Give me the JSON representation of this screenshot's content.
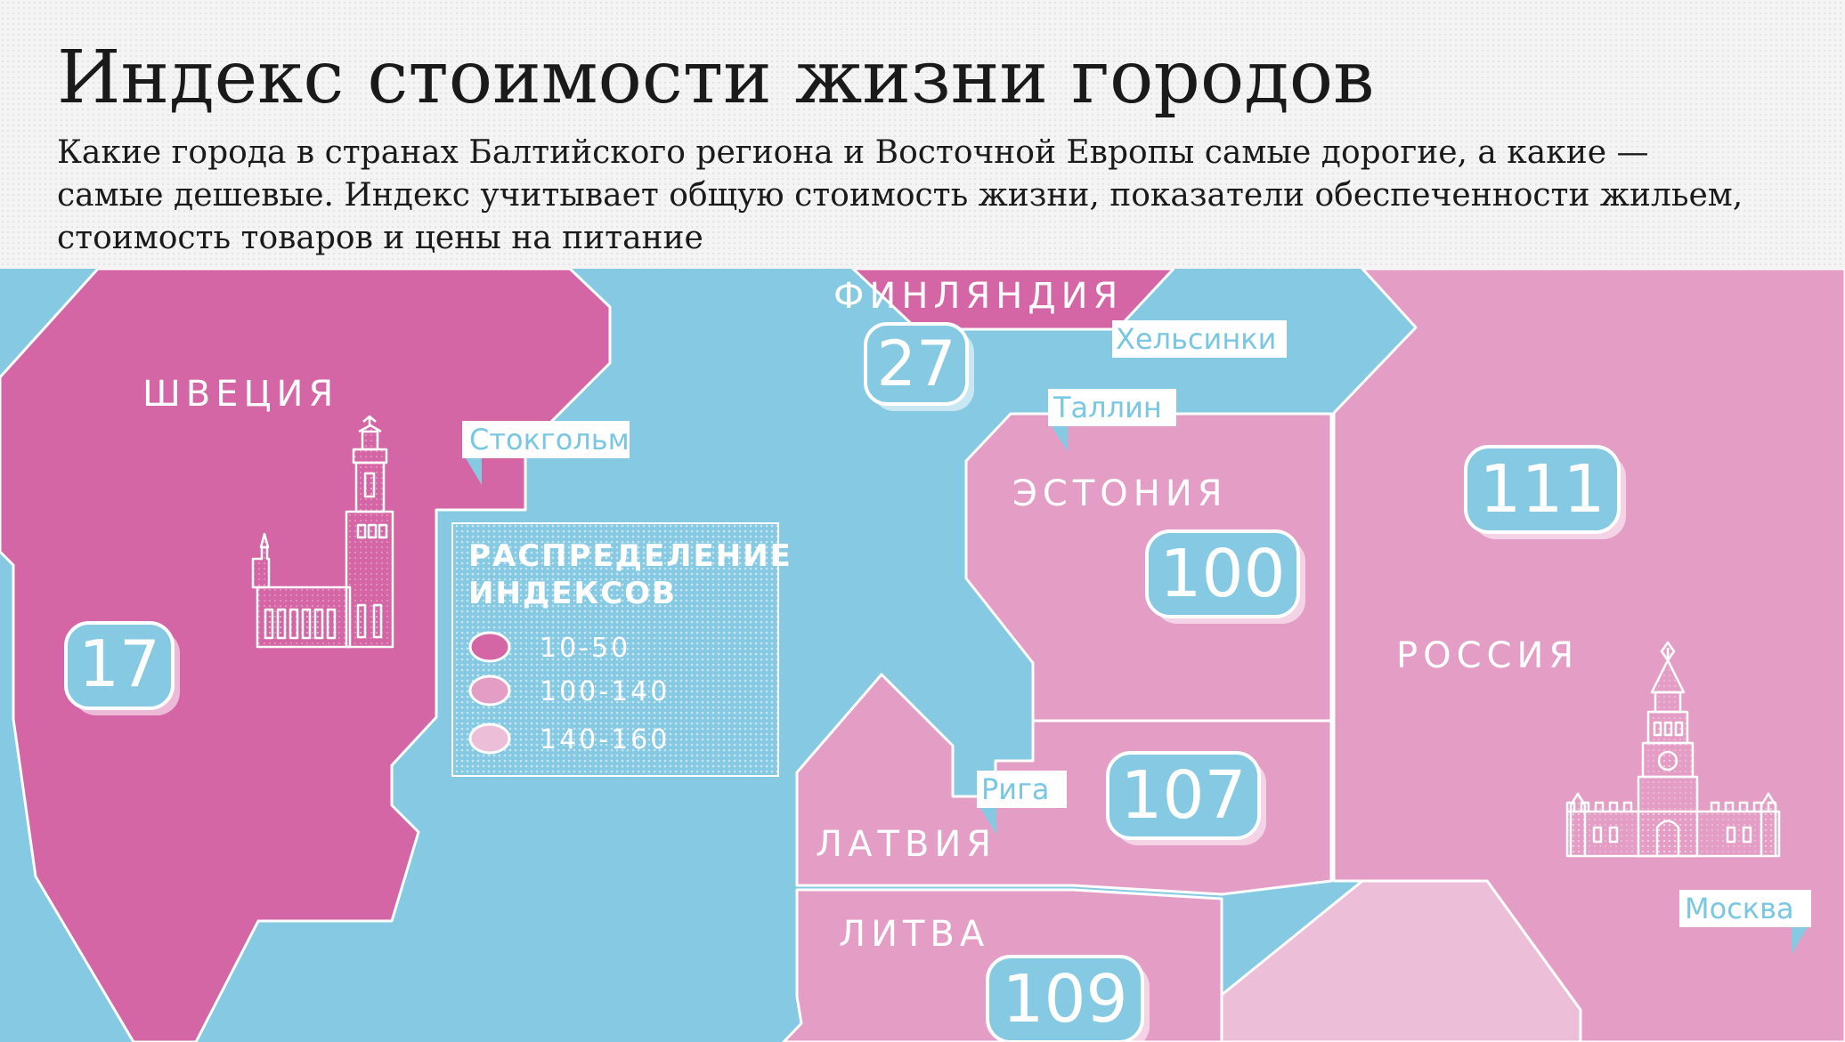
{
  "header": {
    "title": "Индекс стоимости жизни городов",
    "subtitle_lines": [
      "Какие города в странах Балтийского региона и Восточной Европы самые дорогие, а какие —",
      "самые дешевые. Индекс учитывает общую стоимость жизни, показатели обеспеченности жильем,",
      "стоимость товаров и цены на питание"
    ]
  },
  "colors": {
    "sea": "#86c9e2",
    "index_10_50": "#d466a6",
    "index_100_140": "#e49ec6",
    "index_140_160": "#ecbed8",
    "badge": "#86c9e2",
    "label_bg": "#ffffff",
    "label_text": "#79c7e3"
  },
  "countries": [
    {
      "name": "ШВЕЦИЯ",
      "index": 17,
      "range": "10-50",
      "city": "Стокгольм"
    },
    {
      "name": "ФИНЛЯНДИЯ",
      "index": 27,
      "range": "10-50",
      "city": "Хельсинки"
    },
    {
      "name": "ЭСТОНИЯ",
      "index": 100,
      "range": "100-140",
      "city": "Таллин"
    },
    {
      "name": "ЛАТВИЯ",
      "index": 107,
      "range": "100-140",
      "city": "Рига"
    },
    {
      "name": "ЛИТВА",
      "index": 109,
      "range": "100-140",
      "city": ""
    },
    {
      "name": "РОССИЯ",
      "index": 111,
      "range": "100-140",
      "city": "Москва"
    }
  ],
  "legend": {
    "title_lines": [
      "РАСПРЕДЕЛЕНИЕ",
      "ИНДЕКСОВ"
    ],
    "items": [
      {
        "label": "10-50",
        "color": "#d466a6"
      },
      {
        "label": "100-140",
        "color": "#e49ec6"
      },
      {
        "label": "140-160",
        "color": "#ecbed8"
      }
    ]
  },
  "icons": [
    "stockholm-city-hall-icon",
    "kremlin-tower-icon"
  ]
}
